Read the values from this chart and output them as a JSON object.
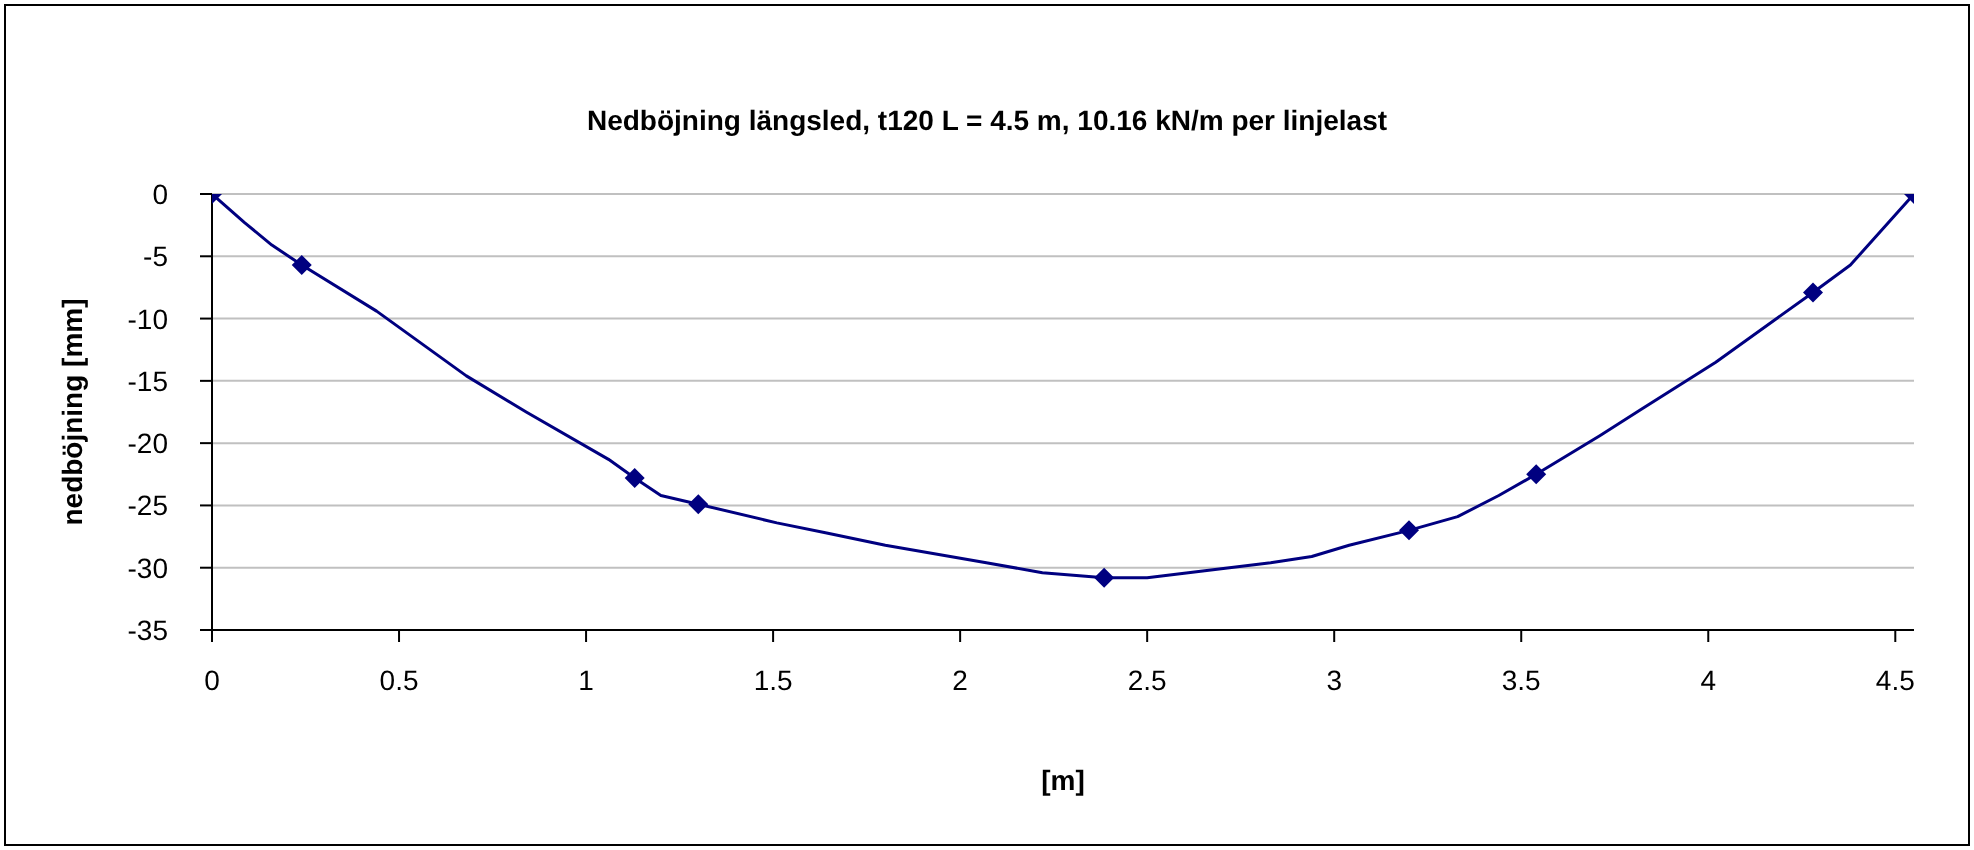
{
  "chart_data": {
    "type": "line",
    "title": "Nedböjning längsled, t120 L = 4.5 m, 10.16 kN/m per linjelast",
    "xlabel": "[m]",
    "ylabel": "nedböjning [mm]",
    "xlim": [
      0,
      4.55
    ],
    "xticks": [
      0,
      0.5,
      1,
      1.5,
      2,
      2.5,
      3,
      3.5,
      4,
      4.5
    ],
    "ylim": [
      -35,
      0
    ],
    "yticks": [
      -35,
      -30,
      -25,
      -20,
      -15,
      -10,
      -5,
      0
    ],
    "grid": "y",
    "legend": false,
    "series": [
      {
        "marker": "none",
        "color": "#000080",
        "x": [
          0,
          0.087,
          0.16,
          0.24,
          0.44,
          0.68,
          0.84,
          1.06,
          1.13,
          1.2,
          1.3,
          1.51,
          1.64,
          1.8,
          2.07,
          2.22,
          2.385,
          2.5,
          2.61,
          2.83,
          2.94,
          3.04,
          3.2,
          3.33,
          3.44,
          3.54,
          3.71,
          3.82,
          4.02,
          4.28,
          4.38,
          4.55
        ],
        "values": [
          0,
          -2.3,
          -4.1,
          -5.7,
          -9.4,
          -14.6,
          -17.5,
          -21.3,
          -22.8,
          -24.2,
          -24.9,
          -26.4,
          -27.2,
          -28.2,
          -29.6,
          -30.4,
          -30.8,
          -30.8,
          -30.4,
          -29.6,
          -29.1,
          -28.2,
          -27,
          -25.9,
          -24.2,
          -22.5,
          -19.4,
          -17.3,
          -13.5,
          -7.9,
          -5.7,
          0
        ]
      },
      {
        "type": "scatter",
        "marker": "diamond",
        "color": "#000080",
        "x": [
          0,
          0.24,
          1.13,
          1.3,
          2.385,
          3.2,
          3.54,
          4.28,
          4.55
        ],
        "values": [
          0,
          -5.7,
          -22.8,
          -24.9,
          -30.8,
          -27,
          -22.5,
          -7.9,
          0
        ]
      }
    ]
  }
}
